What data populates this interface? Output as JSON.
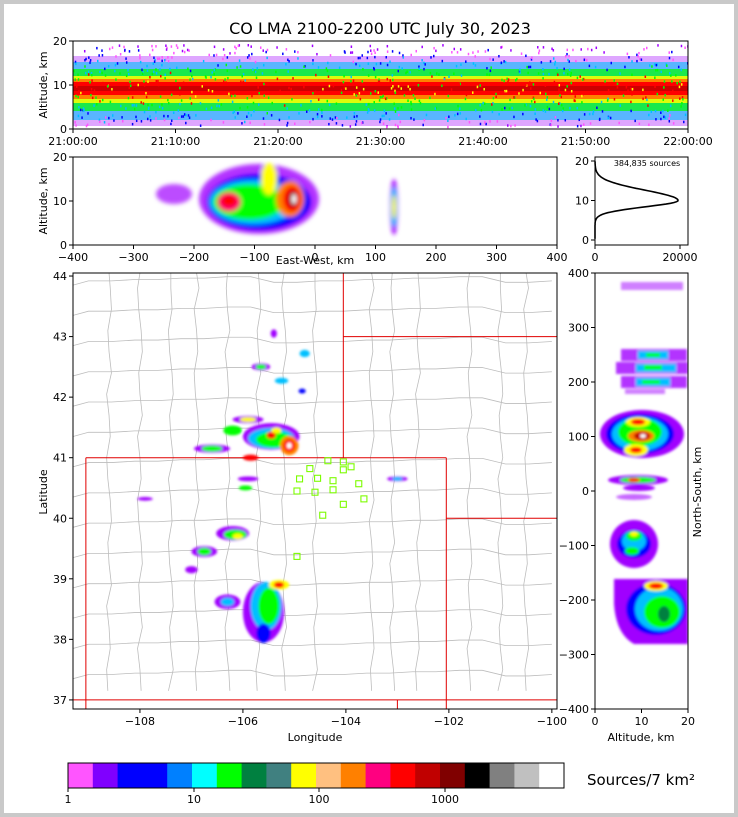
{
  "chart_data": [
    {
      "type": "heatmap",
      "title": "CO LMA 2100-2200 UTC July 30, 2023",
      "ylabel": "Altitude, km",
      "ylim": [
        0,
        20
      ],
      "yticks": [
        "0",
        "10",
        "20"
      ],
      "xticks": [
        "21:00:00",
        "21:10:00",
        "21:20:00",
        "21:30:00",
        "21:40:00",
        "21:50:00",
        "22:00:00"
      ]
    },
    {
      "type": "heatmap",
      "xlabel": "East-West, km",
      "ylabel": "Altitude, km",
      "xlim": [
        -400,
        400
      ],
      "ylim": [
        0,
        20
      ],
      "xticks": [
        "−400",
        "−300",
        "−200",
        "−100",
        "0",
        "100",
        "200",
        "300",
        "400"
      ],
      "yticks": [
        "0",
        "10",
        "20"
      ]
    },
    {
      "type": "line",
      "annotation": "384,835 sources",
      "xlim": [
        0,
        22000
      ],
      "ylim": [
        0,
        20
      ],
      "xticks": [
        "0",
        "20000"
      ],
      "yticks": [
        "0",
        "10",
        "20"
      ],
      "peak_altitude_km": 10
    },
    {
      "type": "heatmap",
      "xlabel": "Longitude",
      "ylabel": "Latitude",
      "xlim": [
        -109.3,
        -99.9
      ],
      "ylim": [
        36.85,
        44.05
      ],
      "xticks": [
        "−108",
        "−106",
        "−104",
        "−102",
        "−100"
      ],
      "yticks": [
        "37",
        "38",
        "39",
        "40",
        "41",
        "42",
        "43",
        "44"
      ],
      "stations": [
        [
          -104.35,
          40.95
        ],
        [
          -104.05,
          40.93
        ],
        [
          -103.9,
          40.85
        ],
        [
          -104.7,
          40.82
        ],
        [
          -104.05,
          40.8
        ],
        [
          -104.9,
          40.65
        ],
        [
          -104.55,
          40.66
        ],
        [
          -104.25,
          40.62
        ],
        [
          -103.75,
          40.57
        ],
        [
          -104.95,
          40.45
        ],
        [
          -104.6,
          40.43
        ],
        [
          -104.25,
          40.47
        ],
        [
          -103.65,
          40.32
        ],
        [
          -104.05,
          40.23
        ],
        [
          -104.45,
          40.05
        ],
        [
          -104.95,
          39.37
        ]
      ],
      "station_color": "#7CFC00"
    },
    {
      "type": "heatmap",
      "xlabel": "Altitude, km",
      "ylabel": "North-South, km",
      "xlim": [
        0,
        20
      ],
      "ylim": [
        -400,
        400
      ],
      "xticks": [
        "0",
        "10",
        "20"
      ],
      "yticks": [
        "−400",
        "−300",
        "−200",
        "−100",
        "0",
        "100",
        "200",
        "300",
        "400"
      ]
    }
  ],
  "colorbar": {
    "label": "Sources/7 km²",
    "ticks": [
      "1",
      "10",
      "100",
      "1000"
    ],
    "colors": [
      "#ff55ff",
      "#8000ff",
      "#0000ff",
      "#0000ff",
      "#0080ff",
      "#00ffff",
      "#00ff00",
      "#008040",
      "#408080",
      "#ffff00",
      "#ffc080",
      "#ff8000",
      "#ff0080",
      "#ff0000",
      "#c00000",
      "#800000",
      "#000000",
      "#808080",
      "#c0c0c0",
      "#ffffff"
    ]
  }
}
